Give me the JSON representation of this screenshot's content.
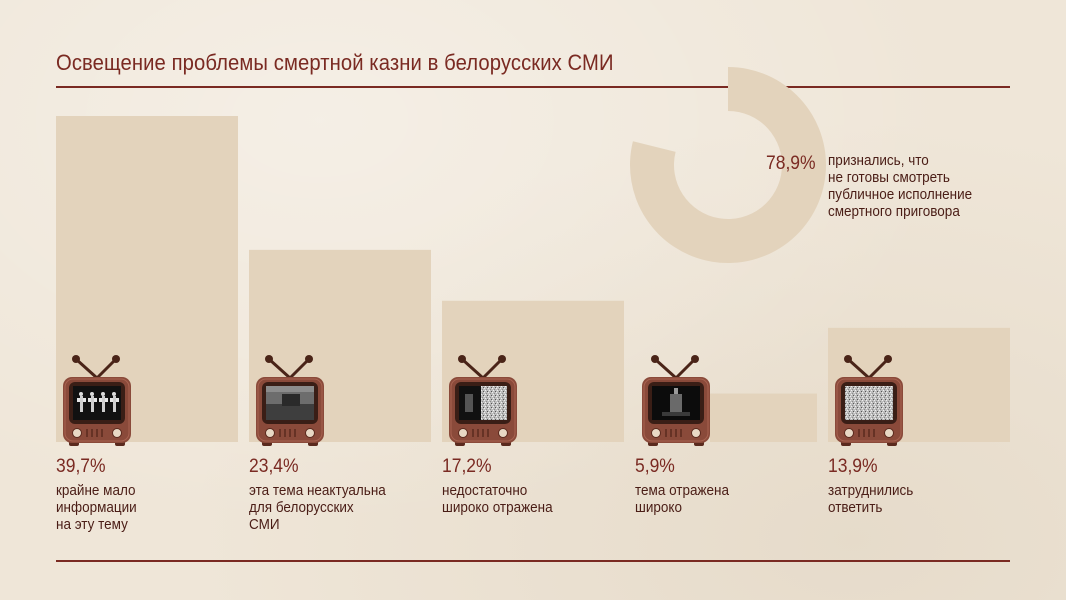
{
  "title": "Освещение проблемы смертной казни в белорусских СМИ",
  "colors": {
    "background": "#efe6d8",
    "bar": "#e3d3bc",
    "accent": "#7a2a22",
    "text_dark": "#4a1d16",
    "tv_body": "#8a4a3a"
  },
  "chart_data": [
    {
      "type": "bar",
      "categories": [
        "крайне мало информации на эту тему",
        "эта тема неактуальна для белорусских СМИ",
        "недостаточно широко отражена",
        "тема отражена широко",
        "затруднились ответить"
      ],
      "values": [
        39.7,
        23.4,
        17.2,
        5.9,
        13.9
      ],
      "ylim": [
        0,
        40
      ],
      "grid": false,
      "bars": [
        {
          "value_label": "39,7%",
          "description": "крайне мало\nинформации\nна эту тему",
          "icon": "tv-dancers-icon"
        },
        {
          "value_label": "23,4%",
          "description": "эта тема неактуальна\nдля белорусских\nСМИ",
          "icon": "tv-field-icon"
        },
        {
          "value_label": "17,2%",
          "description": "недостаточно\nшироко отражена",
          "icon": "tv-half-static-icon"
        },
        {
          "value_label": "5,9%",
          "description": "тема отражена\nшироко",
          "icon": "tv-dark-scene-icon"
        },
        {
          "value_label": "13,9%",
          "description": "затруднились\nответить",
          "icon": "tv-static-icon"
        }
      ]
    },
    {
      "type": "pie",
      "style": "donut",
      "values": [
        78.9
      ],
      "value_label": "78,9%",
      "description": "признались, что\nне готовы смотреть\nпубличное исполнение\nсмертного приговора"
    }
  ]
}
